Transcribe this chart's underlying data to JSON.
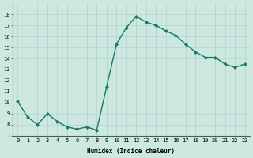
{
  "x": [
    0,
    1,
    2,
    3,
    4,
    5,
    6,
    7,
    8,
    9,
    10,
    11,
    12,
    13,
    14,
    15,
    16,
    17,
    18,
    19,
    20,
    21,
    22,
    23
  ],
  "y": [
    10.1,
    8.7,
    8.0,
    9.0,
    8.3,
    7.8,
    7.6,
    7.8,
    7.5,
    11.4,
    15.3,
    16.8,
    17.8,
    17.3,
    17.0,
    16.5,
    16.1,
    15.3,
    14.6,
    14.1,
    14.1,
    13.5,
    13.2,
    13.5
  ],
  "line_color": "#1a7a5e",
  "marker": "D",
  "marker_size": 2.0,
  "bg_color": "#cce8e0",
  "grid_color": "#b0d4cc",
  "xlabel": "Humidex (Indice chaleur)",
  "ylim": [
    7,
    19
  ],
  "xlim": [
    -0.5,
    23.5
  ],
  "yticks": [
    7,
    8,
    9,
    10,
    11,
    12,
    13,
    14,
    15,
    16,
    17,
    18
  ],
  "xticks": [
    0,
    1,
    2,
    3,
    4,
    5,
    6,
    7,
    8,
    9,
    10,
    11,
    12,
    13,
    14,
    15,
    16,
    17,
    18,
    19,
    20,
    21,
    22,
    23
  ],
  "xtick_labels": [
    "0",
    "1",
    "2",
    "3",
    "4",
    "5",
    "6",
    "7",
    "8",
    "9",
    "10",
    "11",
    "12",
    "13",
    "14",
    "15",
    "16",
    "17",
    "18",
    "19",
    "20",
    "21",
    "22",
    "23"
  ],
  "label_fontsize": 5.5,
  "tick_fontsize": 5.0,
  "linewidth": 1.0
}
